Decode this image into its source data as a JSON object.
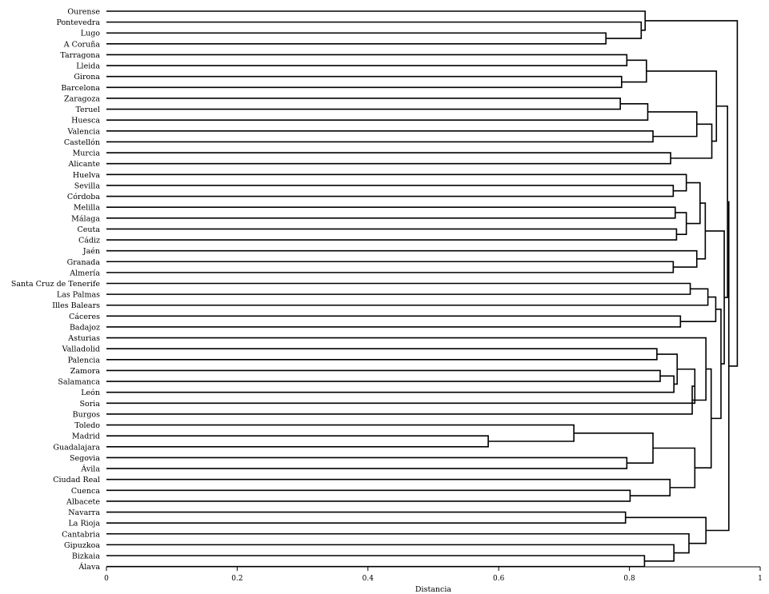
{
  "chart_data": {
    "type": "dendrogram",
    "orientation": "horizontal",
    "xlabel": "Distancia",
    "xlim": [
      0,
      1
    ],
    "x_ticks": [
      0,
      0.2,
      0.4,
      0.6,
      0.8,
      1
    ],
    "x_tick_labels": [
      "0",
      "0.2",
      "0.4",
      "0.6",
      "0.8",
      "1"
    ],
    "leaves": [
      "Ourense",
      "Pontevedra",
      "Lugo",
      "A Coruña",
      "Tarragona",
      "Lleida",
      "Girona",
      "Barcelona",
      "Zaragoza",
      "Teruel",
      "Huesca",
      "Valencia",
      "Castellón",
      "Murcia",
      "Alicante",
      "Huelva",
      "Sevilla",
      "Córdoba",
      "Melilla",
      "Málaga",
      "Ceuta",
      "Cádiz",
      "Jaén",
      "Granada",
      "Almería",
      "Santa Cruz de Tenerife",
      "Las Palmas",
      "Illes Balears",
      "Cáceres",
      "Badajoz",
      "Asturias",
      "Valladolid",
      "Palencia",
      "Zamora",
      "Salamanca",
      "León",
      "Soria",
      "Burgos",
      "Toledo",
      "Madrid",
      "Guadalajara",
      "Segovia",
      "Ávila",
      "Ciudad Real",
      "Cuenca",
      "Albacete",
      "Navarra",
      "La Rioja",
      "Cantabria",
      "Gipuzkoa",
      "Bizkaia",
      "Álava"
    ],
    "merges": [
      {
        "a": "L2",
        "b": "L3",
        "d": 0.764
      },
      {
        "a": "L1",
        "b": "N0",
        "d": 0.818
      },
      {
        "a": "L0",
        "b": "N1",
        "d": 0.824
      },
      {
        "a": "L4",
        "b": "L5",
        "d": 0.796
      },
      {
        "a": "L6",
        "b": "L7",
        "d": 0.788
      },
      {
        "a": "N3",
        "b": "N4",
        "d": 0.826
      },
      {
        "a": "L8",
        "b": "L9",
        "d": 0.786
      },
      {
        "a": "N6",
        "b": "L10",
        "d": 0.828
      },
      {
        "a": "L11",
        "b": "L12",
        "d": 0.836
      },
      {
        "a": "N7",
        "b": "N8",
        "d": 0.903
      },
      {
        "a": "L13",
        "b": "L14",
        "d": 0.863
      },
      {
        "a": "N9",
        "b": "N10",
        "d": 0.926
      },
      {
        "a": "N5",
        "b": "N11",
        "d": 0.933
      },
      {
        "a": "L16",
        "b": "L17",
        "d": 0.867
      },
      {
        "a": "L15",
        "b": "N13",
        "d": 0.887
      },
      {
        "a": "L18",
        "b": "L19",
        "d": 0.87
      },
      {
        "a": "L20",
        "b": "L21",
        "d": 0.872
      },
      {
        "a": "N15",
        "b": "N16",
        "d": 0.887
      },
      {
        "a": "N14",
        "b": "N17",
        "d": 0.908
      },
      {
        "a": "L23",
        "b": "L24",
        "d": 0.867
      },
      {
        "a": "L22",
        "b": "N19",
        "d": 0.903
      },
      {
        "a": "N18",
        "b": "N20",
        "d": 0.916
      },
      {
        "a": "L25",
        "b": "L26",
        "d": 0.893
      },
      {
        "a": "N22",
        "b": "L27",
        "d": 0.92
      },
      {
        "a": "L28",
        "b": "L29",
        "d": 0.878
      },
      {
        "a": "N23",
        "b": "N24",
        "d": 0.932
      },
      {
        "a": "L31",
        "b": "L32",
        "d": 0.842
      },
      {
        "a": "L33",
        "b": "L34",
        "d": 0.847
      },
      {
        "a": "N27",
        "b": "L35",
        "d": 0.868
      },
      {
        "a": "N26",
        "b": "N28",
        "d": 0.873
      },
      {
        "a": "N29",
        "b": "L36",
        "d": 0.9
      },
      {
        "a": "N30",
        "b": "L37",
        "d": 0.896
      },
      {
        "a": "L30",
        "b": "N31",
        "d": 0.917
      },
      {
        "a": "L39",
        "b": "L40",
        "d": 0.584
      },
      {
        "a": "L38",
        "b": "N33",
        "d": 0.715
      },
      {
        "a": "L41",
        "b": "L42",
        "d": 0.796
      },
      {
        "a": "N34",
        "b": "N35",
        "d": 0.836
      },
      {
        "a": "L44",
        "b": "L45",
        "d": 0.801
      },
      {
        "a": "L43",
        "b": "N37",
        "d": 0.862
      },
      {
        "a": "N36",
        "b": "N38",
        "d": 0.9
      },
      {
        "a": "N32",
        "b": "N39",
        "d": 0.925
      },
      {
        "a": "N25",
        "b": "N40",
        "d": 0.94
      },
      {
        "a": "N21",
        "b": "N41",
        "d": 0.945
      },
      {
        "a": "N12",
        "b": "N42",
        "d": 0.95
      },
      {
        "a": "L46",
        "b": "L47",
        "d": 0.794
      },
      {
        "a": "L50",
        "b": "L51",
        "d": 0.823
      },
      {
        "a": "L49",
        "b": "N45",
        "d": 0.868
      },
      {
        "a": "L48",
        "b": "N46",
        "d": 0.891
      },
      {
        "a": "N44",
        "b": "N47",
        "d": 0.917
      },
      {
        "a": "N43",
        "b": "N48",
        "d": 0.952
      },
      {
        "a": "N2",
        "b": "N49",
        "d": 0.965
      }
    ]
  }
}
